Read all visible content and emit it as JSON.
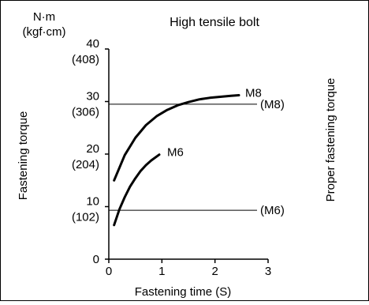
{
  "chart_data": {
    "type": "line",
    "title": "High tensile bolt",
    "unit_label": [
      "N·m",
      "(kgf·cm)"
    ],
    "xlabel": "Fastening time (S)",
    "ylabel": "Fastening torque",
    "right_label": "Proper fastening torque",
    "xlim": [
      0,
      3
    ],
    "ylim": [
      0,
      40
    ],
    "x_ticks": [
      "0",
      "1",
      "2",
      "3"
    ],
    "y_ticks": [
      {
        "value": 0,
        "label": "0",
        "sub": ""
      },
      {
        "value": 10,
        "label": "10",
        "sub": "(102)"
      },
      {
        "value": 20,
        "label": "20",
        "sub": "(204)"
      },
      {
        "value": 30,
        "label": "30",
        "sub": "(306)"
      },
      {
        "value": 40,
        "label": "40",
        "sub": "(408)"
      }
    ],
    "series": [
      {
        "name": "M8",
        "x": [
          0.1,
          0.3,
          0.5,
          0.7,
          0.9,
          1.1,
          1.3,
          1.5,
          1.7,
          1.9,
          2.1,
          2.3,
          2.45
        ],
        "y": [
          15.0,
          19.8,
          23.1,
          25.5,
          27.2,
          28.4,
          29.3,
          29.9,
          30.4,
          30.7,
          30.9,
          31.1,
          31.2
        ]
      },
      {
        "name": "M6",
        "x": [
          0.1,
          0.2,
          0.3,
          0.4,
          0.5,
          0.6,
          0.7,
          0.8,
          0.95
        ],
        "y": [
          6.5,
          9.5,
          11.8,
          13.8,
          15.4,
          16.8,
          17.9,
          18.8,
          19.9
        ]
      }
    ],
    "reference_lines": [
      {
        "name": "(M8)",
        "value": 29.5
      },
      {
        "name": "(M6)",
        "value": 9.3
      }
    ],
    "grid": false,
    "legend": "none"
  }
}
